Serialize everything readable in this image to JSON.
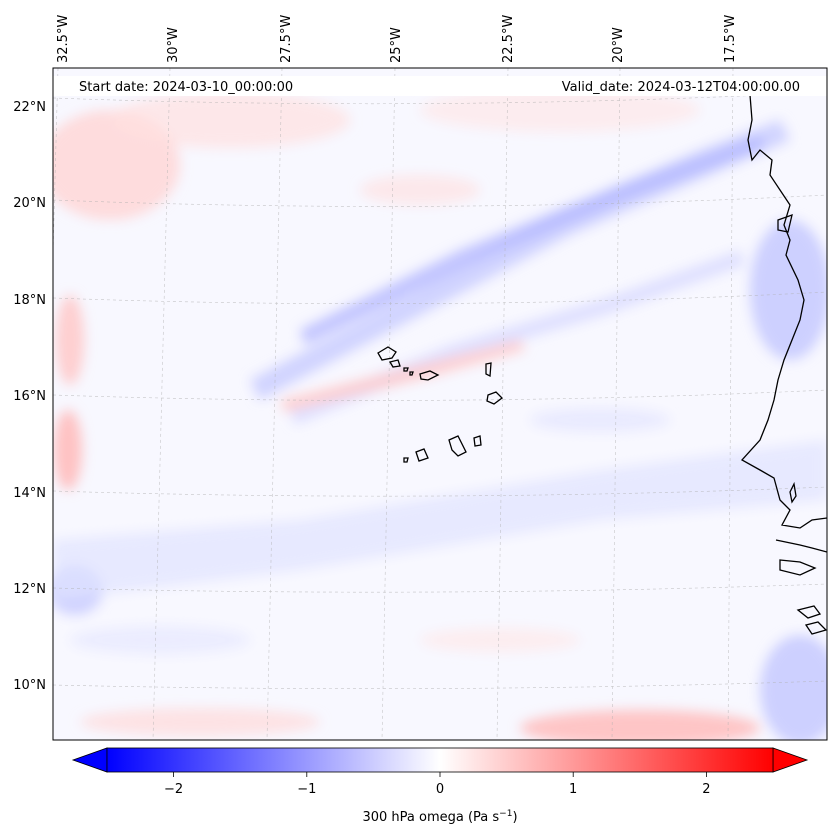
{
  "map": {
    "start_label": "Start date: 2024-03-10_00:00:00",
    "valid_label": "Valid_date: 2024-03-12T04:00:00.00",
    "lon_labels": [
      "32.5°W",
      "30°W",
      "27.5°W",
      "25°W",
      "22.5°W",
      "20°W",
      "17.5°W"
    ],
    "lat_labels": [
      "22°N",
      "20°N",
      "18°N",
      "16°N",
      "14°N",
      "12°N",
      "10°N"
    ],
    "extent": {
      "lon_min": -32.6,
      "lon_max": -15.3,
      "lat_min": 8.9,
      "lat_max": 22.7
    },
    "colors": {
      "negative": "#0000ff",
      "neutral": "#ffffff",
      "positive": "#ff0000",
      "coast": "#000000",
      "grid": "#b0b0b0"
    }
  },
  "colorbar": {
    "label_prefix": "300 hPa omega (Pa s",
    "label_sup": "−1",
    "label_suffix": ")",
    "ticks": [
      "−2",
      "−1",
      "0",
      "1",
      "2"
    ],
    "tick_values": [
      -2,
      -1,
      0,
      1,
      2
    ],
    "range": [
      -2.5,
      2.5
    ],
    "extend": "both"
  }
}
